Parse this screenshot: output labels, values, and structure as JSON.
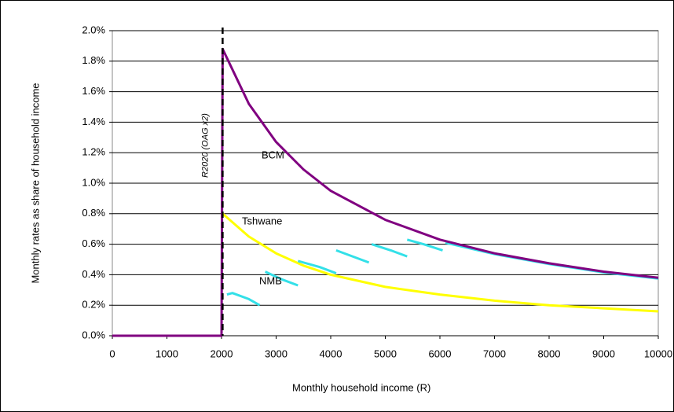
{
  "chart_data": {
    "type": "line",
    "xlabel": "Monthly household income (R)",
    "ylabel": "Monthly rates as share of household income",
    "xlim": [
      0,
      10000
    ],
    "xticks": [
      0,
      1000,
      2000,
      3000,
      4000,
      5000,
      6000,
      7000,
      8000,
      9000,
      10000
    ],
    "ylim": [
      0,
      2
    ],
    "yticks": [
      {
        "value": 0,
        "label": "0.0%"
      },
      {
        "value": 0.2,
        "label": "0.2%"
      },
      {
        "value": 0.4,
        "label": "0.4%"
      },
      {
        "value": 0.6,
        "label": "0.6%"
      },
      {
        "value": 0.8,
        "label": "0.8%"
      },
      {
        "value": 1.0,
        "label": "1.0%"
      },
      {
        "value": 1.2,
        "label": "1.2%"
      },
      {
        "value": 1.4,
        "label": "1.4%"
      },
      {
        "value": 1.6,
        "label": "1.6%"
      },
      {
        "value": 1.8,
        "label": "1.8%"
      },
      {
        "value": 2.0,
        "label": "2.0%"
      }
    ],
    "grid": true,
    "vline": {
      "x": 2020,
      "label": "R2020 (OAG x2)"
    },
    "series": [
      {
        "name": "Tshwane",
        "color": "#ffff00",
        "x": [
          2020,
          2500,
          3000,
          3500,
          4000,
          5000,
          6000,
          7000,
          8000,
          9000,
          10000
        ],
        "values": [
          0.8,
          0.65,
          0.54,
          0.46,
          0.4,
          0.32,
          0.27,
          0.23,
          0.2,
          0.18,
          0.16
        ]
      },
      {
        "name": "NMB",
        "color": "#33e0e8",
        "x": [
          2100,
          2200,
          2500,
          2700,
          null,
          2800,
          3100,
          3400,
          null,
          3400,
          3800,
          4100,
          null,
          4100,
          4400,
          4700,
          null,
          4750,
          5100,
          5400,
          null,
          5400,
          5700,
          6050,
          null,
          6100,
          7000,
          8000,
          9000,
          10000
        ],
        "values": [
          0.27,
          0.28,
          0.24,
          0.2,
          null,
          0.42,
          0.37,
          0.33,
          null,
          0.49,
          0.45,
          0.41,
          null,
          0.56,
          0.52,
          0.48,
          null,
          0.6,
          0.56,
          0.52,
          null,
          0.63,
          0.6,
          0.56,
          null,
          0.61,
          0.535,
          0.47,
          0.415,
          0.375
        ]
      },
      {
        "name": "BCM",
        "color": "#800080",
        "x": [
          0,
          2000,
          2020,
          2500,
          3000,
          3500,
          4000,
          5000,
          6000,
          7000,
          8000,
          9000,
          10000
        ],
        "values": [
          0,
          0,
          1.88,
          1.52,
          1.27,
          1.09,
          0.95,
          0.76,
          0.63,
          0.54,
          0.475,
          0.42,
          0.38
        ]
      }
    ]
  }
}
